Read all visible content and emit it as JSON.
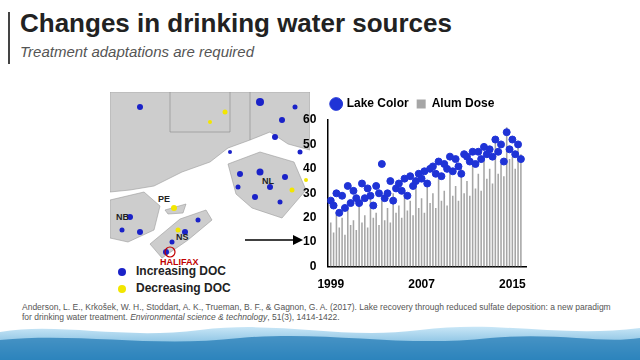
{
  "header": {
    "title": "Changes in drinking water sources",
    "subtitle": "Treatment adaptations are required"
  },
  "map": {
    "labels": [
      "NB",
      "PE",
      "NS",
      "NL",
      "HALIFAX"
    ],
    "legend": [
      {
        "label": "Increasing DOC",
        "color": "#1a22c8"
      },
      {
        "label": "Decreasing DOC",
        "color": "#f2e600"
      }
    ]
  },
  "chart_data": {
    "type": "bar",
    "x": [
      1999,
      1999.25,
      1999.5,
      1999.75,
      2000,
      2000.25,
      2000.5,
      2000.75,
      2001,
      2001.25,
      2001.5,
      2001.75,
      2002,
      2002.25,
      2002.5,
      2002.75,
      2003,
      2003.25,
      2003.5,
      2003.75,
      2004,
      2004.25,
      2004.5,
      2004.75,
      2005,
      2005.25,
      2005.5,
      2005.75,
      2006,
      2006.25,
      2006.5,
      2006.75,
      2007,
      2007.25,
      2007.5,
      2007.75,
      2008,
      2008.25,
      2008.5,
      2008.75,
      2009,
      2009.25,
      2009.5,
      2009.75,
      2010,
      2010.25,
      2010.5,
      2010.75,
      2011,
      2011.25,
      2011.5,
      2011.75,
      2012,
      2012.25,
      2012.5,
      2012.75,
      2013,
      2013.25,
      2013.5,
      2013.75,
      2014,
      2014.25,
      2014.5,
      2014.75,
      2015,
      2015.25,
      2015.5,
      2015.75
    ],
    "series": [
      {
        "name": "Alum Dose",
        "type": "bar",
        "color": "#a6a6a6",
        "values": [
          18,
          14,
          22,
          16,
          20,
          13,
          24,
          17,
          19,
          15,
          26,
          18,
          21,
          16,
          28,
          20,
          22,
          17,
          27,
          19,
          24,
          18,
          30,
          22,
          25,
          20,
          31,
          23,
          27,
          21,
          33,
          24,
          28,
          22,
          34,
          26,
          30,
          24,
          36,
          27,
          31,
          25,
          38,
          29,
          33,
          27,
          40,
          30,
          35,
          29,
          42,
          32,
          38,
          31,
          46,
          36,
          40,
          34,
          52,
          38,
          42,
          37,
          57,
          44,
          45,
          40,
          50,
          46
        ]
      },
      {
        "name": "Lake Color",
        "type": "scatter",
        "color": "#1f33d6",
        "marker": "circle",
        "values": [
          27,
          25,
          30,
          22,
          29,
          24,
          33,
          26,
          31,
          28,
          26,
          34,
          28,
          32,
          29,
          25,
          33,
          30,
          42,
          28,
          30,
          35,
          27,
          32,
          34,
          31,
          36,
          29,
          37,
          33,
          35,
          38,
          36,
          39,
          34,
          40,
          41,
          38,
          43,
          37,
          42,
          40,
          45,
          39,
          44,
          41,
          38,
          46,
          45,
          43,
          47,
          42,
          47,
          44,
          49,
          46,
          48,
          45,
          52,
          47,
          50,
          43,
          55,
          48,
          52,
          46,
          50,
          44
        ]
      }
    ],
    "xlim": [
      1998.7,
      2016.2
    ],
    "xticks": [
      1999,
      2007,
      2015
    ],
    "ylim": [
      0,
      60
    ],
    "yticks": [
      0,
      10,
      20,
      30,
      40,
      50,
      60
    ],
    "grid": false,
    "legend": "top"
  },
  "citation": {
    "before": "Anderson, L. E., Krkošek, W. H., Stoddart, A. K., Trueman, B. F., & Gagnon, G. A. (2017). Lake recovery through reduced sulfate deposition: a new paradigm for drinking water treatment. ",
    "journal": "Environmental science & technology",
    "after": ", 51(3), 1414-1422."
  }
}
